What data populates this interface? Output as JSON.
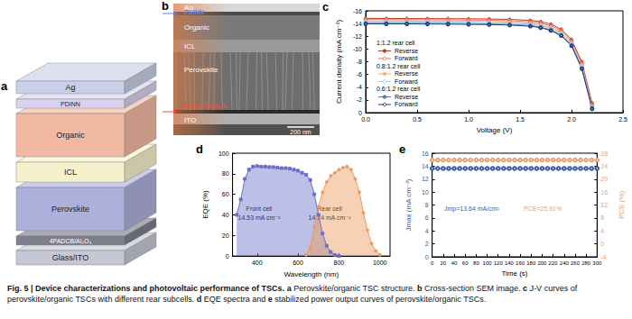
{
  "panels": {
    "a": {
      "label": "a",
      "layers": [
        "Ag",
        "PDINN",
        "Organic",
        "ICL",
        "Perovskite",
        "4PADCB/Al₂O₃",
        "Glass/ITO"
      ]
    },
    "b": {
      "label": "b",
      "layers": [
        "Ag",
        "PDINN",
        "Organic",
        "ICL",
        "Perovskite",
        "4PADCB/Al₂O₃",
        "ITO"
      ],
      "scale_bar": "200 nm"
    }
  },
  "chart_data": [
    {
      "type": "line",
      "title": "c",
      "xlabel": "Voltage (V)",
      "ylabel": "Current density (mA cm⁻²)",
      "xlim": [
        0,
        2.5
      ],
      "xticks": [
        {
          "value": 0,
          "label": "0.0"
        },
        0.5,
        {
          "value": 1,
          "label": "1.0"
        },
        1.5,
        {
          "value": 2,
          "label": "2.0"
        },
        2.5
      ],
      "ylim": [
        0,
        -16
      ],
      "yticks": [
        0,
        -2,
        -4,
        -6,
        -8,
        -10,
        -12,
        -14,
        -16
      ],
      "grid": false,
      "legend": "left",
      "x": [
        0,
        0.2,
        0.4,
        0.6,
        0.8,
        1.0,
        1.2,
        1.4,
        1.6,
        1.7,
        1.8,
        1.9,
        2.0,
        2.1,
        2.2
      ],
      "groups": [
        {
          "name": "1:1.2 rear cell",
          "series": [
            {
              "name": "Reverse",
              "color": "#c0392b",
              "marker": "circle",
              "values": [
                -14.8,
                -14.8,
                -14.79,
                -14.78,
                -14.77,
                -14.75,
                -14.72,
                -14.66,
                -14.5,
                -14.3,
                -13.9,
                -13.1,
                -11.5,
                -8,
                -1.5
              ]
            },
            {
              "name": "Forward",
              "color": "#f06a4a",
              "marker": "open_circle",
              "values": [
                -14.62,
                -14.62,
                -14.61,
                -14.6,
                -14.58,
                -14.56,
                -14.52,
                -14.45,
                -14.28,
                -14.05,
                -13.65,
                -12.85,
                -11.25,
                -7.75,
                -1.25
              ]
            }
          ]
        },
        {
          "name": "0.8:1.2 rear cell",
          "series": [
            {
              "name": "Reverse",
              "color": "#f5b26b",
              "marker": "circle",
              "values": [
                -14.38,
                -14.38,
                -14.37,
                -14.36,
                -14.34,
                -14.32,
                -14.28,
                -14.2,
                -14.03,
                -13.8,
                -13.4,
                -12.6,
                -11,
                -7.5,
                -1
              ]
            },
            {
              "name": "Forward",
              "color": "#9ec5e8",
              "marker": "open_circle",
              "values": [
                -14.28,
                -14.28,
                -14.27,
                -14.26,
                -14.24,
                -14.22,
                -14.18,
                -14.1,
                -13.92,
                -13.68,
                -13.27,
                -12.45,
                -10.85,
                -7.35,
                -0.9
              ]
            }
          ]
        },
        {
          "name": "0.6:1.2 rear cell",
          "series": [
            {
              "name": "Reverse",
              "color": "#4a78c2",
              "marker": "circle",
              "values": [
                -14.05,
                -14.05,
                -14.04,
                -14.03,
                -14.01,
                -13.98,
                -13.94,
                -13.86,
                -13.68,
                -13.45,
                -13,
                -12.2,
                -10.6,
                -7,
                -0.8
              ]
            },
            {
              "name": "Forward",
              "color": "#1f3f7a",
              "marker": "open_circle",
              "values": [
                -13.95,
                -13.95,
                -13.94,
                -13.93,
                -13.91,
                -13.88,
                -13.84,
                -13.76,
                -13.58,
                -13.35,
                -12.9,
                -12.1,
                -10.5,
                -6.9,
                -0.6
              ]
            }
          ]
        }
      ]
    },
    {
      "type": "area",
      "title": "d",
      "xlabel": "Wavelength (nm)",
      "ylabel": "EQE (%)",
      "xlim": [
        280,
        1050
      ],
      "xticks": [
        400,
        600,
        800,
        1000
      ],
      "ylim": [
        0,
        100
      ],
      "yticks": [
        0,
        20,
        40,
        60,
        80,
        100
      ],
      "grid": false,
      "x": [
        300,
        320,
        340,
        360,
        380,
        400,
        420,
        440,
        460,
        480,
        500,
        520,
        540,
        560,
        580,
        600,
        620,
        640,
        660,
        680,
        700,
        720,
        740,
        760,
        780,
        800,
        820,
        840,
        860,
        880,
        900,
        920,
        940,
        960,
        980,
        1000
      ],
      "series": [
        {
          "name": "Front cell",
          "color": "#6a70c8",
          "marker": "square",
          "annotation": "14.53 mA cm⁻²",
          "values": [
            40,
            55,
            75,
            84,
            87,
            87.5,
            87,
            87,
            86.5,
            86.5,
            86,
            85.5,
            85.5,
            85,
            84,
            83,
            81,
            79,
            74,
            60,
            40,
            22,
            10,
            4,
            1,
            0,
            null,
            null,
            null,
            null,
            null,
            null,
            null,
            null,
            null,
            null
          ]
        },
        {
          "name": "Rear cell",
          "color": "#ee9a5c",
          "marker": "circle",
          "annotation": "14.24 mA cm⁻²",
          "values": [
            null,
            null,
            null,
            null,
            null,
            null,
            null,
            null,
            null,
            null,
            null,
            null,
            null,
            null,
            null,
            null,
            null,
            1,
            8,
            28,
            48,
            62,
            72,
            78,
            81,
            84,
            86,
            87,
            84,
            75,
            62,
            42,
            25,
            12,
            5,
            1
          ]
        }
      ]
    },
    {
      "type": "line",
      "title": "e",
      "xlabel": "Time (s)",
      "ylabel": "Jmax (mA cm⁻²)",
      "y2label": "PCE (%)",
      "xlim": [
        0,
        300
      ],
      "xticks": [
        0,
        20,
        40,
        60,
        80,
        100,
        120,
        140,
        160,
        180,
        200,
        220,
        240,
        260,
        280,
        300
      ],
      "ylim": [
        0,
        16
      ],
      "yticks": [
        0,
        2,
        4,
        6,
        8,
        10,
        12,
        14,
        16
      ],
      "y2lim": [
        -4,
        28
      ],
      "y2ticks": [
        -4,
        0,
        4,
        8,
        12,
        16,
        20,
        24,
        28
      ],
      "grid": false,
      "x": [
        0,
        10,
        20,
        30,
        40,
        50,
        60,
        70,
        80,
        90,
        100,
        110,
        120,
        130,
        140,
        150,
        160,
        170,
        180,
        190,
        200,
        210,
        220,
        230,
        240,
        250,
        260,
        270,
        280,
        290,
        300
      ],
      "series": [
        {
          "color": "#3b5ba5",
          "marker": "open_circle",
          "annotation": "Jmp=13.64 mA/cm²",
          "values": [
            13.64,
            13.64,
            13.64,
            13.64,
            13.64,
            13.64,
            13.64,
            13.64,
            13.64,
            13.64,
            13.64,
            13.64,
            13.64,
            13.64,
            13.64,
            13.64,
            13.64,
            13.64,
            13.64,
            13.64,
            13.64,
            13.64,
            13.64,
            13.64,
            13.64,
            13.64,
            13.64,
            13.64,
            13.64,
            13.64,
            13.64
          ]
        },
        {
          "color": "#e8a070",
          "marker": "open_circle",
          "axis": "y2",
          "annotation": "PCE=25.91%",
          "values": [
            25.91,
            25.91,
            25.91,
            25.91,
            25.91,
            25.91,
            25.91,
            25.91,
            25.91,
            25.91,
            25.91,
            25.91,
            25.91,
            25.91,
            25.91,
            25.91,
            25.91,
            25.91,
            25.91,
            25.91,
            25.91,
            25.91,
            25.91,
            25.91,
            25.91,
            25.91,
            25.91,
            25.91,
            25.91,
            25.91,
            25.91
          ]
        }
      ]
    }
  ],
  "caption": {
    "title": "Fig. 5 | Device characterizations and photovoltaic performance of TSCs.",
    "parts": [
      {
        "label": "a",
        "text": "Perovskite/organic TSC structure."
      },
      {
        "label": "b",
        "text": "Cross-section SEM image."
      },
      {
        "label": "c",
        "text": "J-V curves of perovskite/organic TSCs with different rear subcells."
      },
      {
        "label": "d",
        "text": "EQE spectra and"
      },
      {
        "label": "e",
        "text": "stabilized power output curves of perovskite/organic TSCs."
      }
    ]
  }
}
